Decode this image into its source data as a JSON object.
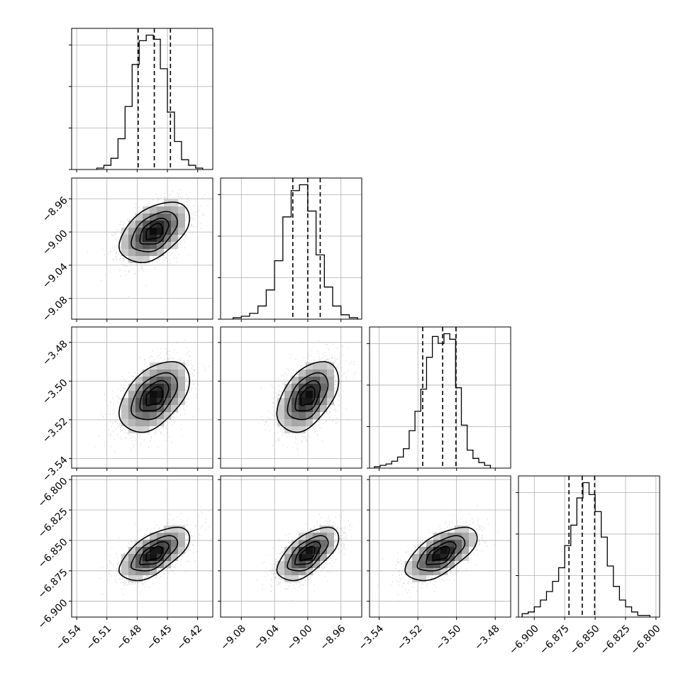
{
  "chart_data": {
    "type": "corner",
    "parameters": [
      {
        "index": 0,
        "range": [
          -6.545,
          -6.405
        ],
        "ticks": [
          "−6.54",
          "−6.51",
          "−6.48",
          "−6.45",
          "−6.42"
        ],
        "tick_values": [
          -6.54,
          -6.51,
          -6.48,
          -6.45,
          -6.42
        ]
      },
      {
        "index": 1,
        "range": [
          -9.105,
          -8.935
        ],
        "ticks": [
          "−9.08",
          "−9.04",
          "−9.00",
          "−8.96"
        ],
        "tick_values": [
          -9.08,
          -9.04,
          -9.0,
          -8.96
        ]
      },
      {
        "index": 2,
        "range": [
          -3.545,
          -3.472
        ],
        "ticks": [
          "−3.54",
          "−3.52",
          "−3.50",
          "−3.48"
        ],
        "tick_values": [
          -3.54,
          -3.52,
          -3.5,
          -3.48
        ]
      },
      {
        "index": 3,
        "range": [
          -6.913,
          -6.797
        ],
        "ticks": [
          "−6.900",
          "−6.875",
          "−6.850",
          "−6.825",
          "−6.800"
        ],
        "tick_values": [
          -6.9,
          -6.875,
          -6.85,
          -6.825,
          -6.8
        ]
      }
    ],
    "histograms": [
      {
        "quantiles": [
          -6.479,
          -6.463,
          -6.447
        ],
        "bin_edges": [
          -6.52,
          -6.513,
          -6.506,
          -6.499,
          -6.492,
          -6.485,
          -6.478,
          -6.471,
          -6.464,
          -6.457,
          -6.45,
          -6.443,
          -6.436,
          -6.429,
          -6.422,
          -6.415
        ],
        "counts": [
          1,
          3,
          8,
          22,
          45,
          75,
          92,
          96,
          93,
          72,
          41,
          20,
          7,
          3,
          1
        ]
      },
      {
        "quantiles": [
          -9.018,
          -9.0,
          -8.985
        ],
        "bin_edges": [
          -9.09,
          -9.08,
          -9.07,
          -9.06,
          -9.05,
          -9.04,
          -9.03,
          -9.02,
          -9.01,
          -9.0,
          -8.99,
          -8.98,
          -8.97,
          -8.96,
          -8.95,
          -8.94
        ],
        "counts": [
          1,
          2,
          4,
          9,
          20,
          40,
          70,
          88,
          92,
          74,
          44,
          22,
          9,
          3,
          1
        ]
      },
      {
        "quantiles": [
          -3.5175,
          -3.5072,
          -3.5003
        ],
        "bin_edges": [
          -3.5425,
          -3.5395,
          -3.5365,
          -3.5335,
          -3.5305,
          -3.5275,
          -3.5245,
          -3.5215,
          -3.5185,
          -3.5155,
          -3.5125,
          -3.5095,
          -3.5065,
          -3.5035,
          -3.5005,
          -3.4975,
          -3.4945,
          -3.4915,
          -3.4885,
          -3.4855,
          -3.4825
        ],
        "counts": [
          1,
          2,
          3,
          5,
          8,
          14,
          27,
          41,
          57,
          80,
          95,
          90,
          97,
          93,
          58,
          31,
          13,
          7,
          4,
          2
        ]
      },
      {
        "quantiles": [
          -6.8715,
          -6.8606,
          -6.8504
        ],
        "bin_edges": [
          -6.91,
          -6.905,
          -6.9,
          -6.895,
          -6.89,
          -6.885,
          -6.88,
          -6.875,
          -6.87,
          -6.865,
          -6.86,
          -6.855,
          -6.85,
          -6.845,
          -6.84,
          -6.835,
          -6.83,
          -6.825,
          -6.82,
          -6.815,
          -6.81,
          -6.805
        ],
        "counts": [
          2,
          3,
          6,
          10,
          15,
          21,
          29,
          42,
          54,
          70,
          79,
          72,
          62,
          47,
          30,
          18,
          10,
          6,
          3,
          1,
          1
        ]
      }
    ],
    "pairs": [
      {
        "x_index": 0,
        "y_index": 1,
        "mean": [
          -6.463,
          -9.0
        ],
        "sd": [
          0.0165,
          0.0175
        ],
        "corr": 0.45
      },
      {
        "x_index": 0,
        "y_index": 2,
        "mean": [
          -6.463,
          -3.508
        ],
        "sd": [
          0.0165,
          0.0088
        ],
        "corr": 0.45
      },
      {
        "x_index": 1,
        "y_index": 2,
        "mean": [
          -9.0,
          -3.508
        ],
        "sd": [
          0.0175,
          0.0088
        ],
        "corr": 0.45
      },
      {
        "x_index": 0,
        "y_index": 3,
        "mean": [
          -6.463,
          -6.861
        ],
        "sd": [
          0.0165,
          0.0105
        ],
        "corr": 0.6
      },
      {
        "x_index": 1,
        "y_index": 3,
        "mean": [
          -9.0,
          -6.861
        ],
        "sd": [
          0.0175,
          0.0105
        ],
        "corr": 0.6
      },
      {
        "x_index": 2,
        "y_index": 3,
        "mean": [
          -3.508,
          -6.861
        ],
        "sd": [
          0.0088,
          0.0105
        ],
        "corr": 0.6
      }
    ],
    "contour_levels_sigma": [
      0.5,
      1.0,
      1.5,
      2.0
    ],
    "grid": true,
    "quantile_line_style": "dashed",
    "colors": {
      "hist": "#000000",
      "scatter": "#8c8c8c",
      "grid": "#b0b0b0",
      "frame": "#000000"
    }
  }
}
